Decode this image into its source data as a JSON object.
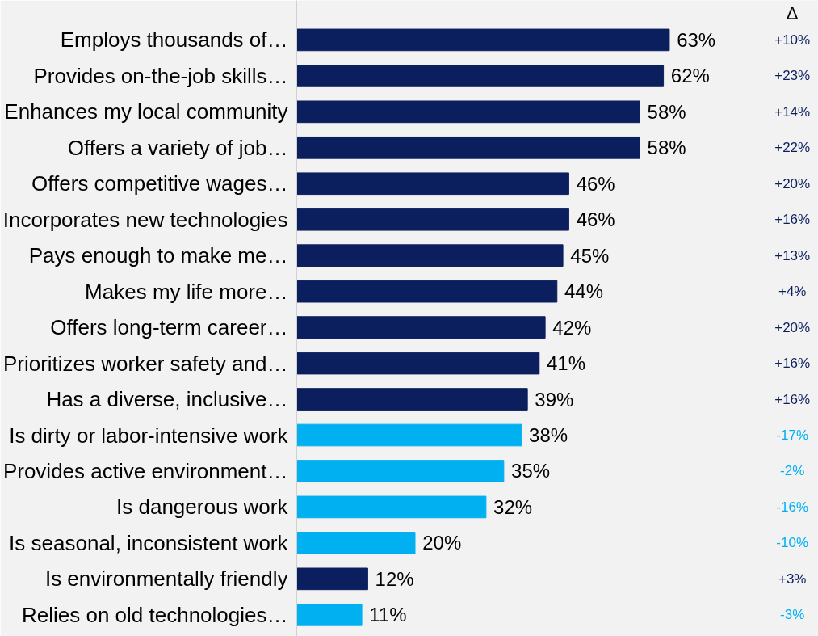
{
  "chart_data": {
    "type": "bar",
    "orientation": "horizontal",
    "categories": [
      "Employs thousands of…",
      "Provides on-the-job skills…",
      "Enhances my local community",
      "Offers a variety of job…",
      "Offers competitive wages…",
      "Incorporates new technologies",
      "Pays enough to make me…",
      "Makes my life more…",
      "Offers long-term career…",
      "Prioritizes worker safety and…",
      "Has a diverse, inclusive…",
      "Is dirty or labor-intensive work",
      "Provides active environment…",
      "Is dangerous work",
      "Is seasonal, inconsistent work",
      "Is environmentally friendly",
      "Relies on old technologies…"
    ],
    "values": [
      63,
      62,
      58,
      58,
      46,
      46,
      45,
      44,
      42,
      41,
      39,
      38,
      35,
      32,
      20,
      12,
      11
    ],
    "colors": [
      "#0b1f5e",
      "#0b1f5e",
      "#0b1f5e",
      "#0b1f5e",
      "#0b1f5e",
      "#0b1f5e",
      "#0b1f5e",
      "#0b1f5e",
      "#0b1f5e",
      "#0b1f5e",
      "#0b1f5e",
      "#00b0f0",
      "#00b0f0",
      "#00b0f0",
      "#00b0f0",
      "#0b1f5e",
      "#00b0f0"
    ],
    "value_labels": [
      "63%",
      "62%",
      "58%",
      "58%",
      "46%",
      "46%",
      "45%",
      "44%",
      "42%",
      "41%",
      "39%",
      "38%",
      "35%",
      "32%",
      "20%",
      "12%",
      "11%"
    ],
    "annotations": [
      "Δ",
      "+10%",
      "+23%",
      "+14%",
      "+22%",
      "+20%",
      "+16%",
      "+13%",
      "+4%",
      "+20%",
      "+16%",
      "+16%",
      "-17%",
      "-2%",
      "-16%",
      "-10%",
      "+3%",
      "-3%"
    ],
    "grid": false
  }
}
